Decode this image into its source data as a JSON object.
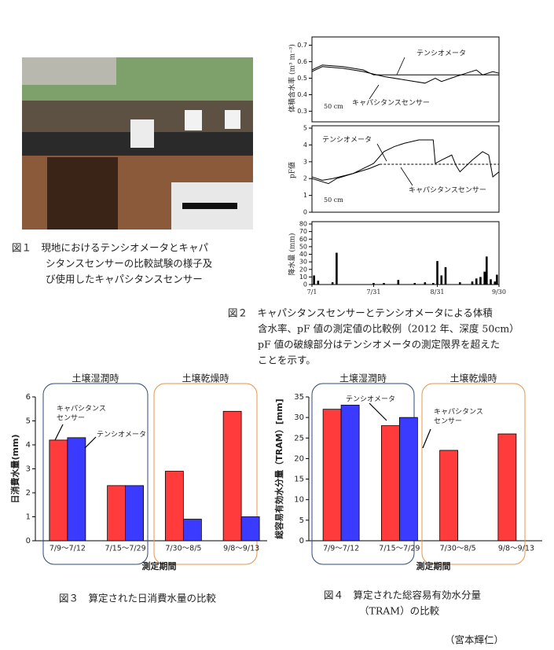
{
  "figure1": {
    "caption": [
      "図１　現地におけるテンシオメータとキャパ",
      "シタンスセンサーの比較試験の様子及",
      "び使用したキャパシタンスセンサー"
    ]
  },
  "figure2": {
    "caption": [
      "図２　キャパシタンスセンサーとテンシオメータによる体積",
      "含水率、pF 値の測定値の比較例（2012 年、深度 50cm）",
      "pF 値の破線部分はテンシオメータの測定限界を超えた",
      "ことを示す。"
    ]
  },
  "figure3": {
    "caption": [
      "図３　算定された日消費水量の比較"
    ]
  },
  "figure4": {
    "caption": [
      "図４　算定された総容易有効水分量",
      "（TRAM）の比較"
    ]
  },
  "author": "（宮本輝仁）",
  "chart_data": [
    {
      "type": "line",
      "ylabel": "体積含水率 (m³ m⁻³)",
      "depth": "50 cm",
      "xlim": [
        0,
        91
      ],
      "ylim": [
        0.25,
        0.75
      ],
      "yticks": [
        0.3,
        0.4,
        0.5,
        0.6,
        0.7
      ],
      "series": [
        {
          "name": "テンシオメータ",
          "color": "#000000",
          "x": [
            0,
            5,
            15,
            25,
            30,
            91
          ],
          "values": [
            0.55,
            0.58,
            0.57,
            0.55,
            0.52,
            0.52
          ]
        },
        {
          "name": "キャパシタンスセンサー",
          "color": "#000000",
          "x": [
            0,
            5,
            15,
            25,
            35,
            45,
            55,
            60,
            63,
            70,
            75,
            80,
            83,
            88,
            91
          ],
          "values": [
            0.54,
            0.57,
            0.56,
            0.54,
            0.51,
            0.49,
            0.47,
            0.5,
            0.48,
            0.51,
            0.53,
            0.55,
            0.52,
            0.54,
            0.53
          ]
        }
      ]
    },
    {
      "type": "line",
      "ylabel": "pF値",
      "depth": "50 cm",
      "xlim": [
        0,
        91
      ],
      "ylim": [
        0,
        5
      ],
      "yticks": [
        0,
        1,
        2,
        3,
        4,
        5
      ],
      "series": [
        {
          "name": "キャパシタンスセンサー",
          "color": "#000000",
          "x": [
            0,
            8,
            12,
            20,
            25,
            30,
            35,
            40,
            45,
            52,
            59,
            60,
            63,
            68,
            70,
            72,
            78,
            83,
            86,
            88,
            91
          ],
          "values": [
            2.0,
            1.7,
            2.0,
            2.3,
            2.6,
            2.9,
            3.6,
            3.9,
            4.1,
            4.3,
            4.3,
            2.9,
            3.1,
            3.4,
            2.8,
            2.4,
            3.1,
            3.6,
            3.4,
            2.1,
            2.4
          ]
        },
        {
          "name": "テンシオメータ",
          "color": "#000000",
          "x": [
            0,
            5,
            10,
            20,
            28,
            33
          ],
          "values": [
            2.1,
            1.9,
            2.0,
            2.3,
            2.6,
            2.85
          ]
        },
        {
          "color": "#000000",
          "dash": true,
          "x": [
            33,
            91
          ],
          "values": [
            2.85,
            2.85
          ]
        }
      ]
    },
    {
      "type": "bar",
      "ylabel": "降水量 (mm)",
      "color": "#000000",
      "xlim": [
        0,
        91
      ],
      "ylim": [
        0,
        80
      ],
      "yticks": [
        0,
        10,
        20,
        30,
        40,
        50,
        60,
        70,
        80
      ],
      "xticks": [
        {
          "value": 0,
          "label": "7/1"
        },
        {
          "value": 30,
          "label": "7/31"
        },
        {
          "value": 61,
          "label": "8/31"
        },
        {
          "value": 91,
          "label": "9/30"
        }
      ],
      "x": [
        1,
        3,
        10,
        12,
        30,
        35,
        42,
        50,
        55,
        59,
        61,
        63,
        65,
        72,
        78,
        80,
        82,
        84,
        85,
        87,
        89,
        90
      ],
      "values": [
        12,
        5,
        3,
        42,
        2,
        2,
        6,
        2,
        3,
        2,
        31,
        12,
        23,
        3,
        4,
        8,
        10,
        17,
        37,
        7,
        4,
        13
      ]
    },
    {
      "type": "grouped-bar",
      "ylabel": "日消費水量(mm)",
      "xlabel": "測定期間",
      "groups": [
        "土壌湿潤時",
        "土壌乾燥時"
      ],
      "categories": [
        "7/9～7/12",
        "7/15～7/29",
        "7/30～8/5",
        "9/8～9/13"
      ],
      "ylim": [
        0,
        6
      ],
      "yticks": [
        0,
        1,
        2,
        3,
        4,
        5,
        6
      ],
      "series": [
        {
          "color": "#ff3b3b",
          "values": [
            4.2,
            2.3,
            2.9,
            5.4
          ]
        },
        {
          "color": "#3b3bff",
          "values": [
            4.3,
            2.3,
            0.9,
            1.0
          ]
        }
      ],
      "annotations": [
        {
          "lines": [
            "キャパシタンス",
            "センサー"
          ]
        },
        {
          "lines": [
            "テンシオメータ"
          ]
        }
      ]
    },
    {
      "type": "grouped-bar",
      "ylabel": "総容易有効水分量（TRAM）[mm]",
      "xlabel": "測定期間",
      "groups": [
        "土壌湿潤時",
        "土壌乾燥時"
      ],
      "categories": [
        "7/9～7/12",
        "7/15～7/29",
        "7/30～8/5",
        "9/8～9/13"
      ],
      "ylim": [
        0,
        35
      ],
      "yticks": [
        0,
        5,
        10,
        15,
        20,
        25,
        30,
        35
      ],
      "series": [
        {
          "color": "#ff3b3b",
          "values": [
            32,
            28,
            22,
            26
          ]
        },
        {
          "color": "#3b3bff",
          "values": [
            33,
            30,
            null,
            null
          ]
        }
      ],
      "annotations": [
        {
          "lines": [
            "テンシオメータ"
          ]
        },
        {
          "lines": [
            "キャパシタンス",
            "センサー"
          ]
        }
      ]
    }
  ]
}
